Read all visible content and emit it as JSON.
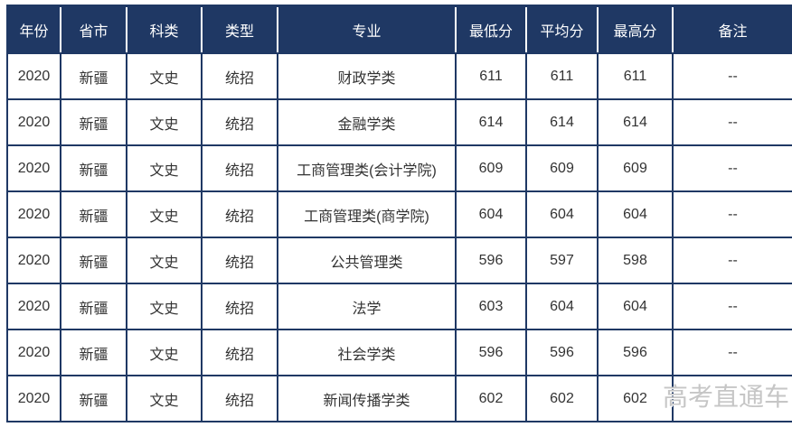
{
  "colors": {
    "header_bg": "#1F3864",
    "header_text": "#FFFFFF",
    "grid_border": "#1F3864",
    "header_separator": "#FFFFFF",
    "body_text": "#333333",
    "watermark_text": "#C6C6C6",
    "page_bg": "#FFFFFF"
  },
  "table": {
    "columns": [
      {
        "key": "year",
        "label": "年份"
      },
      {
        "key": "province",
        "label": "省市"
      },
      {
        "key": "category",
        "label": "科类"
      },
      {
        "key": "type",
        "label": "类型"
      },
      {
        "key": "major",
        "label": "专业"
      },
      {
        "key": "min-score",
        "label": "最低分"
      },
      {
        "key": "avg-score",
        "label": "平均分"
      },
      {
        "key": "max-score",
        "label": "最高分"
      },
      {
        "key": "remark",
        "label": "备注"
      }
    ],
    "rows": [
      [
        "2020",
        "新疆",
        "文史",
        "统招",
        "财政学类",
        "611",
        "611",
        "611",
        "--"
      ],
      [
        "2020",
        "新疆",
        "文史",
        "统招",
        "金融学类",
        "614",
        "614",
        "614",
        "--"
      ],
      [
        "2020",
        "新疆",
        "文史",
        "统招",
        "工商管理类(会计学院)",
        "609",
        "609",
        "609",
        "--"
      ],
      [
        "2020",
        "新疆",
        "文史",
        "统招",
        "工商管理类(商学院)",
        "604",
        "604",
        "604",
        "--"
      ],
      [
        "2020",
        "新疆",
        "文史",
        "统招",
        "公共管理类",
        "596",
        "597",
        "598",
        "--"
      ],
      [
        "2020",
        "新疆",
        "文史",
        "统招",
        "法学",
        "603",
        "604",
        "604",
        "--"
      ],
      [
        "2020",
        "新疆",
        "文史",
        "统招",
        "社会学类",
        "596",
        "596",
        "596",
        "--"
      ],
      [
        "2020",
        "新疆",
        "文史",
        "统招",
        "新闻传播学类",
        "602",
        "602",
        "602",
        ""
      ]
    ]
  },
  "watermark": {
    "text": "高考直通车"
  },
  "chart_data": {
    "type": "table",
    "columns": [
      "年份",
      "省市",
      "科类",
      "类型",
      "专业",
      "最低分",
      "平均分",
      "最高分",
      "备注"
    ],
    "rows": [
      [
        "2020",
        "新疆",
        "文史",
        "统招",
        "财政学类",
        611,
        611,
        611,
        "--"
      ],
      [
        "2020",
        "新疆",
        "文史",
        "统招",
        "金融学类",
        614,
        614,
        614,
        "--"
      ],
      [
        "2020",
        "新疆",
        "文史",
        "统招",
        "工商管理类(会计学院)",
        609,
        609,
        609,
        "--"
      ],
      [
        "2020",
        "新疆",
        "文史",
        "统招",
        "工商管理类(商学院)",
        604,
        604,
        604,
        "--"
      ],
      [
        "2020",
        "新疆",
        "文史",
        "统招",
        "公共管理类",
        596,
        597,
        598,
        "--"
      ],
      [
        "2020",
        "新疆",
        "文史",
        "统招",
        "法学",
        603,
        604,
        604,
        "--"
      ],
      [
        "2020",
        "新疆",
        "文史",
        "统招",
        "社会学类",
        596,
        596,
        596,
        "--"
      ],
      [
        "2020",
        "新疆",
        "文史",
        "统招",
        "新闻传播学类",
        602,
        602,
        602,
        ""
      ]
    ]
  }
}
